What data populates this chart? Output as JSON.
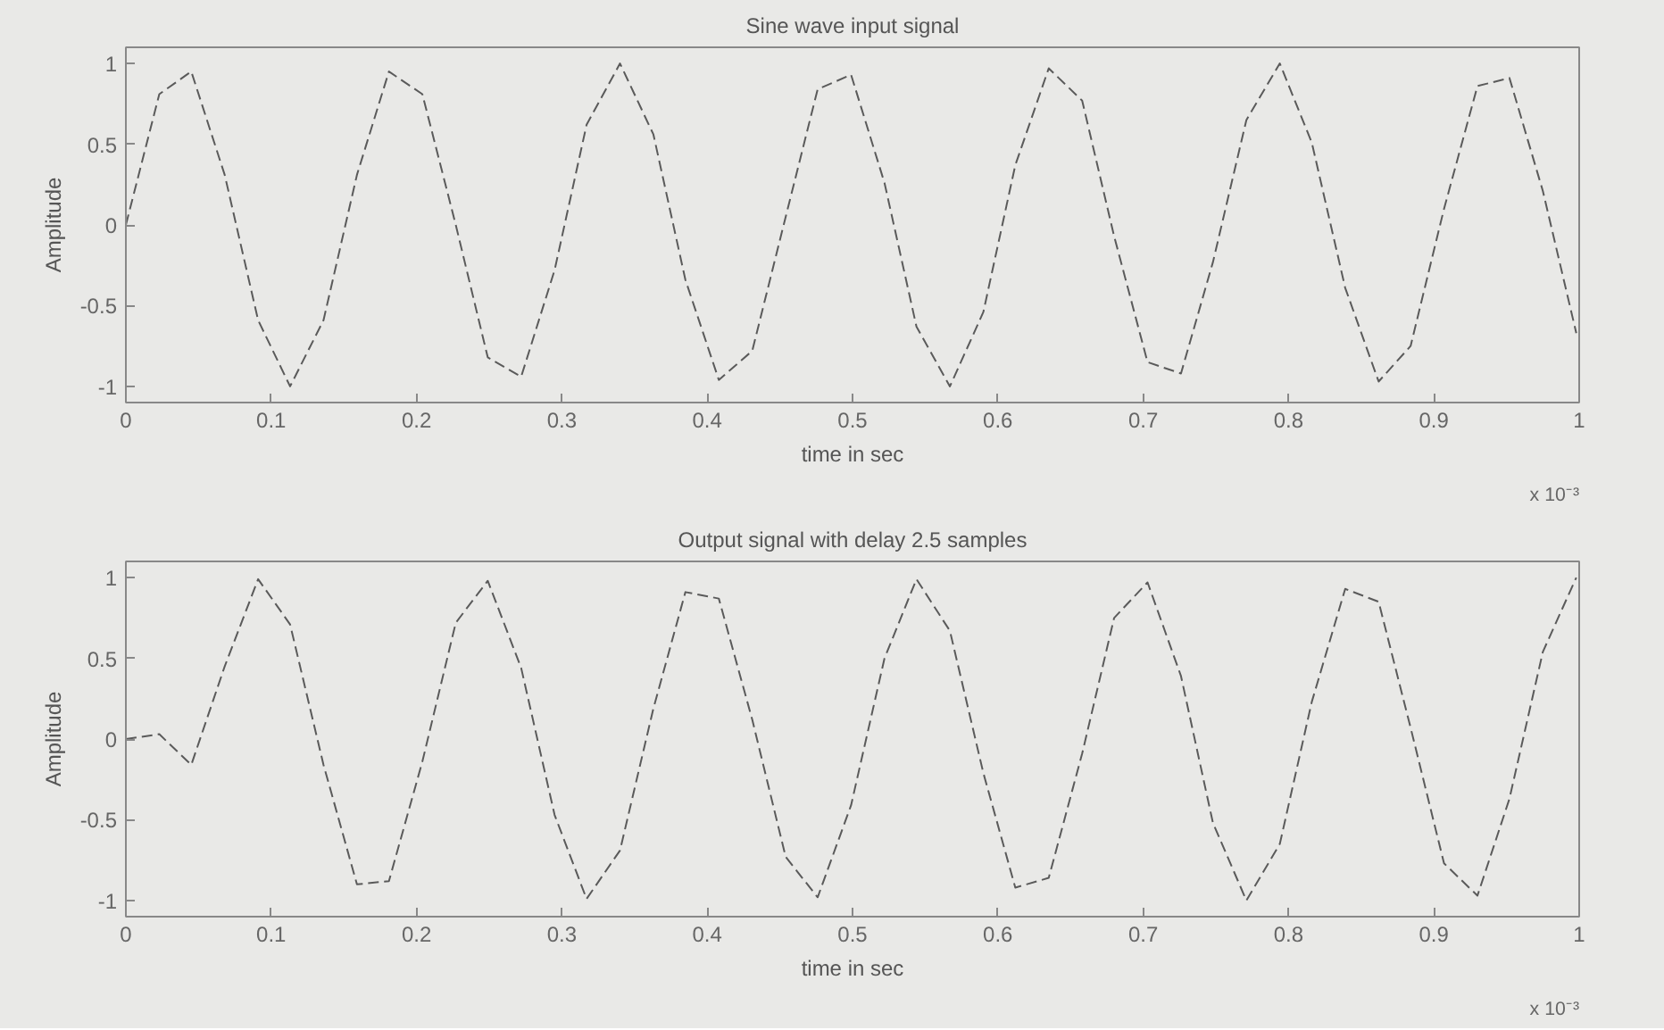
{
  "chart_data": [
    {
      "type": "line",
      "title": "Sine wave input signal",
      "xlabel": "time in sec",
      "ylabel": "Amplitude",
      "x": [
        0,
        0.023,
        0.045,
        0.068,
        0.091,
        0.113,
        0.136,
        0.159,
        0.181,
        0.204,
        0.227,
        0.249,
        0.272,
        0.295,
        0.317,
        0.34,
        0.363,
        0.385,
        0.408,
        0.431,
        0.454,
        0.476,
        0.499,
        0.522,
        0.544,
        0.567,
        0.59,
        0.612,
        0.635,
        0.658,
        0.68,
        0.703,
        0.726,
        0.748,
        0.771,
        0.794,
        0.816,
        0.839,
        0.862,
        0.884,
        0.907,
        0.93,
        0.952,
        0.975,
        0.998
      ],
      "series": [
        {
          "color": "#5a5a5a",
          "values": [
            0,
            0.81,
            0.95,
            0.31,
            -0.59,
            -1.0,
            -0.59,
            0.31,
            0.95,
            0.81,
            0,
            -0.82,
            -0.94,
            -0.28,
            0.62,
            1.0,
            0.56,
            -0.34,
            -0.96,
            -0.78,
            0.05,
            0.84,
            0.93,
            0.26,
            -0.63,
            -1.0,
            -0.54,
            0.37,
            0.97,
            0.77,
            -0.07,
            -0.85,
            -0.92,
            -0.23,
            0.65,
            1.0,
            0.51,
            -0.39,
            -0.97,
            -0.75,
            0.1,
            0.86,
            0.91,
            0.21,
            -0.67
          ]
        }
      ],
      "xlim": [
        0,
        1
      ],
      "ylim": [
        -1.1,
        1.1
      ],
      "xticks": [
        0,
        0.1,
        0.2,
        0.3,
        0.4,
        0.5,
        0.6,
        0.7,
        0.8,
        0.9,
        1
      ],
      "yticks": [
        -1,
        -0.5,
        0,
        0.5,
        1
      ],
      "line_style": "dashed",
      "marker": "none",
      "grid": false,
      "annotations": [
        "x 10⁻³"
      ]
    },
    {
      "type": "line",
      "title": "Output signal with delay 2.5 samples",
      "xlabel": "time in sec",
      "ylabel": "Amplitude",
      "x": [
        0,
        0.023,
        0.045,
        0.068,
        0.091,
        0.113,
        0.136,
        0.159,
        0.181,
        0.204,
        0.227,
        0.249,
        0.272,
        0.295,
        0.317,
        0.34,
        0.363,
        0.385,
        0.408,
        0.431,
        0.454,
        0.476,
        0.499,
        0.522,
        0.544,
        0.567,
        0.59,
        0.612,
        0.635,
        0.658,
        0.68,
        0.703,
        0.726,
        0.748,
        0.771,
        0.794,
        0.816,
        0.839,
        0.862,
        0.884,
        0.907,
        0.93,
        0.952,
        0.975,
        0.998
      ],
      "series": [
        {
          "color": "#5a5a5a",
          "values": [
            0,
            0.03,
            -0.16,
            0.45,
            0.99,
            0.71,
            -0.16,
            -0.9,
            -0.88,
            -0.14,
            0.72,
            0.98,
            0.44,
            -0.47,
            -0.99,
            -0.69,
            0.19,
            0.91,
            0.87,
            0.12,
            -0.73,
            -0.98,
            -0.41,
            0.5,
            0.99,
            0.67,
            -0.21,
            -0.92,
            -0.86,
            -0.09,
            0.75,
            0.97,
            0.39,
            -0.52,
            -1.0,
            -0.65,
            0.23,
            0.93,
            0.85,
            0.07,
            -0.77,
            -0.97,
            -0.37,
            0.54,
            1.0
          ]
        }
      ],
      "xlim": [
        0,
        1
      ],
      "ylim": [
        -1.1,
        1.1
      ],
      "xticks": [
        0,
        0.1,
        0.2,
        0.3,
        0.4,
        0.5,
        0.6,
        0.7,
        0.8,
        0.9,
        1
      ],
      "yticks": [
        -1,
        -0.5,
        0,
        0.5,
        1
      ],
      "line_style": "dashed",
      "marker": "none",
      "grid": false,
      "annotations": [
        "x 10⁻³"
      ]
    }
  ]
}
